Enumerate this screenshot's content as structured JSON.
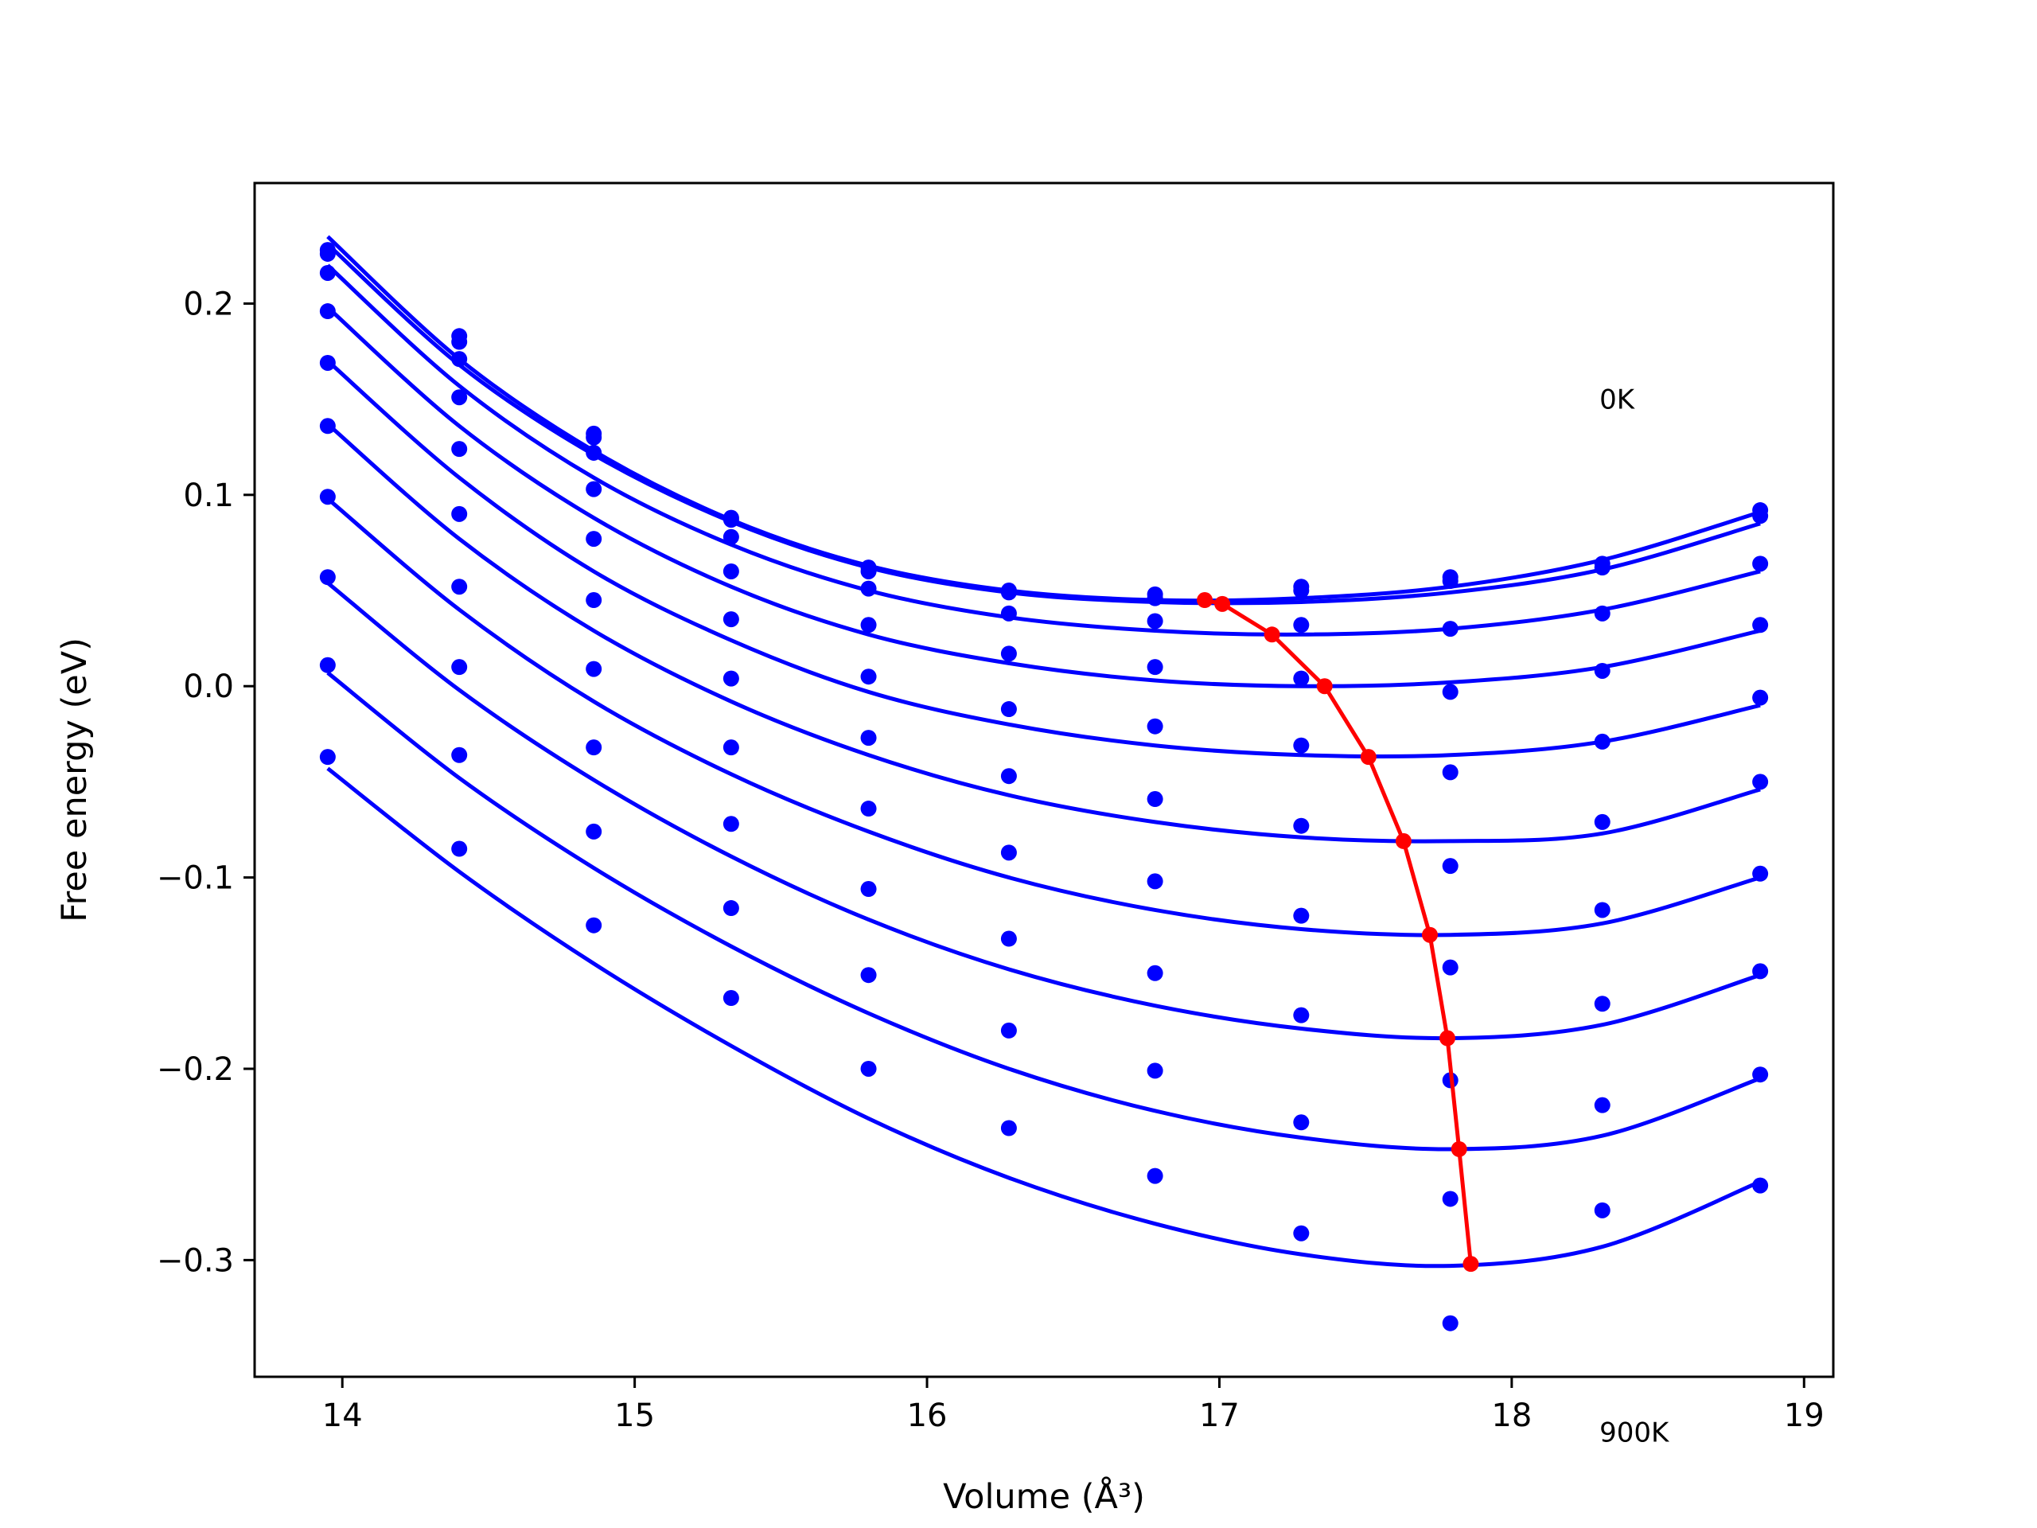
{
  "chart_data": {
    "type": "line",
    "xlabel": "Volume (Å³)",
    "ylabel": "Free energy (eV)",
    "xlim": [
      13.7,
      19.1
    ],
    "ylim": [
      -0.361,
      0.263
    ],
    "xticks": [
      14,
      15,
      16,
      17,
      18,
      19
    ],
    "xtick_labels": [
      "14",
      "15",
      "16",
      "17",
      "18",
      "19"
    ],
    "yticks": [
      -0.3,
      -0.2,
      -0.1,
      0.0,
      0.1,
      0.2
    ],
    "ytick_labels": [
      "−0.3",
      "−0.2",
      "−0.1",
      "0.0",
      "0.1",
      "0.2"
    ],
    "annotations": [
      {
        "text": "0K",
        "x": 18.3,
        "y": 0.145
      },
      {
        "text": "900K",
        "x": 18.3,
        "y": -0.395
      }
    ],
    "colors": {
      "fit": "#0000ff",
      "points": "#0000ff",
      "minima": "#ff0000"
    },
    "volumes": [
      13.95,
      14.4,
      14.86,
      15.33,
      15.8,
      16.28,
      16.78,
      17.28,
      17.79,
      18.31,
      18.85
    ],
    "series": [
      {
        "points": [
          0.228,
          0.183,
          0.132,
          0.088,
          0.062,
          0.05,
          0.048,
          0.052,
          0.057,
          0.064,
          0.092
        ],
        "curve": [
          [
            13.95,
            0.235
          ],
          [
            14.4,
            0.171
          ],
          [
            14.86,
            0.123
          ],
          [
            15.33,
            0.087
          ],
          [
            15.8,
            0.063
          ],
          [
            16.28,
            0.05
          ],
          [
            16.78,
            0.045
          ],
          [
            17.28,
            0.046
          ],
          [
            17.79,
            0.052
          ],
          [
            18.31,
            0.066
          ],
          [
            18.85,
            0.091
          ]
        ],
        "minimum": [
          16.95,
          0.045
        ]
      },
      {
        "points": [
          0.226,
          0.18,
          0.13,
          0.087,
          0.06,
          0.049,
          0.046,
          0.05,
          0.055,
          0.062,
          0.089
        ],
        "curve": [
          [
            13.95,
            0.231
          ],
          [
            14.4,
            0.168
          ],
          [
            14.86,
            0.121
          ],
          [
            15.33,
            0.086
          ],
          [
            15.8,
            0.062
          ],
          [
            16.28,
            0.049
          ],
          [
            16.78,
            0.044
          ],
          [
            17.28,
            0.044
          ],
          [
            17.79,
            0.049
          ],
          [
            18.31,
            0.061
          ],
          [
            18.85,
            0.085
          ]
        ],
        "minimum": [
          17.01,
          0.043
        ]
      },
      {
        "points": [
          0.216,
          0.171,
          0.122,
          0.078,
          0.051,
          0.038,
          0.034,
          0.032,
          0.03,
          0.038,
          0.064
        ],
        "curve": [
          [
            13.95,
            0.22
          ],
          [
            14.4,
            0.157
          ],
          [
            14.86,
            0.109
          ],
          [
            15.33,
            0.074
          ],
          [
            15.8,
            0.05
          ],
          [
            16.28,
            0.036
          ],
          [
            16.78,
            0.029
          ],
          [
            17.28,
            0.027
          ],
          [
            17.79,
            0.03
          ],
          [
            18.31,
            0.04
          ],
          [
            18.85,
            0.06
          ]
        ],
        "minimum": [
          17.18,
          0.027
        ]
      },
      {
        "points": [
          0.196,
          0.151,
          0.103,
          0.06,
          0.032,
          0.017,
          0.01,
          0.004,
          -0.003,
          0.008,
          0.032
        ],
        "curve": [
          [
            13.95,
            0.198
          ],
          [
            14.4,
            0.136
          ],
          [
            14.86,
            0.088
          ],
          [
            15.33,
            0.052
          ],
          [
            15.8,
            0.027
          ],
          [
            16.28,
            0.012
          ],
          [
            16.78,
            0.003
          ],
          [
            17.28,
            0.0
          ],
          [
            17.79,
            0.002
          ],
          [
            18.31,
            0.01
          ],
          [
            18.85,
            0.029
          ]
        ],
        "minimum": [
          17.36,
          0.0
        ]
      },
      {
        "points": [
          0.169,
          0.124,
          0.077,
          0.035,
          0.005,
          -0.012,
          -0.021,
          -0.031,
          -0.045,
          -0.029,
          -0.006
        ],
        "curve": [
          [
            13.95,
            0.17
          ],
          [
            14.4,
            0.109
          ],
          [
            14.86,
            0.06
          ],
          [
            15.33,
            0.024
          ],
          [
            15.8,
            -0.003
          ],
          [
            16.28,
            -0.02
          ],
          [
            16.78,
            -0.031
          ],
          [
            17.28,
            -0.036
          ],
          [
            17.79,
            -0.036
          ],
          [
            18.31,
            -0.029
          ],
          [
            18.85,
            -0.01
          ]
        ],
        "minimum": [
          17.51,
          -0.037
        ]
      },
      {
        "points": [
          0.136,
          0.09,
          0.045,
          0.004,
          -0.027,
          -0.047,
          -0.059,
          -0.073,
          -0.094,
          -0.071,
          -0.05
        ],
        "curve": [
          [
            13.95,
            0.137
          ],
          [
            14.4,
            0.077
          ],
          [
            14.86,
            0.029
          ],
          [
            15.33,
            -0.008
          ],
          [
            15.8,
            -0.036
          ],
          [
            16.28,
            -0.057
          ],
          [
            16.78,
            -0.071
          ],
          [
            17.28,
            -0.079
          ],
          [
            17.79,
            -0.081
          ],
          [
            18.31,
            -0.077
          ],
          [
            18.85,
            -0.054
          ]
        ],
        "minimum": [
          17.63,
          -0.081
        ]
      },
      {
        "points": [
          0.099,
          0.052,
          0.009,
          -0.032,
          -0.064,
          -0.087,
          -0.102,
          -0.12,
          -0.147,
          -0.117,
          -0.098
        ],
        "curve": [
          [
            13.95,
            0.098
          ],
          [
            14.4,
            0.04
          ],
          [
            14.86,
            -0.008
          ],
          [
            15.33,
            -0.046
          ],
          [
            15.8,
            -0.076
          ],
          [
            16.28,
            -0.1
          ],
          [
            16.78,
            -0.117
          ],
          [
            17.28,
            -0.127
          ],
          [
            17.79,
            -0.13
          ],
          [
            18.31,
            -0.124
          ],
          [
            18.85,
            -0.1
          ]
        ],
        "minimum": [
          17.72,
          -0.13
        ]
      },
      {
        "points": [
          0.057,
          0.01,
          -0.032,
          -0.072,
          -0.106,
          -0.132,
          -0.15,
          -0.172,
          -0.206,
          -0.166,
          -0.149
        ],
        "curve": [
          [
            13.95,
            0.054
          ],
          [
            14.4,
            -0.002
          ],
          [
            14.86,
            -0.049
          ],
          [
            15.33,
            -0.089
          ],
          [
            15.8,
            -0.122
          ],
          [
            16.28,
            -0.148
          ],
          [
            16.78,
            -0.167
          ],
          [
            17.28,
            -0.179
          ],
          [
            17.79,
            -0.184
          ],
          [
            18.31,
            -0.177
          ],
          [
            18.85,
            -0.151
          ]
        ],
        "minimum": [
          17.78,
          -0.184
        ]
      },
      {
        "points": [
          0.011,
          -0.036,
          -0.076,
          -0.116,
          -0.151,
          -0.18,
          -0.201,
          -0.228,
          -0.268,
          -0.219,
          -0.203
        ],
        "curve": [
          [
            13.95,
            0.007
          ],
          [
            14.4,
            -0.048
          ],
          [
            14.86,
            -0.095
          ],
          [
            15.33,
            -0.136
          ],
          [
            15.8,
            -0.171
          ],
          [
            16.28,
            -0.2
          ],
          [
            16.78,
            -0.222
          ],
          [
            17.28,
            -0.236
          ],
          [
            17.79,
            -0.242
          ],
          [
            18.31,
            -0.235
          ],
          [
            18.85,
            -0.205
          ]
        ],
        "minimum": [
          17.82,
          -0.242
        ]
      },
      {
        "points": [
          -0.037,
          -0.085,
          -0.125,
          -0.163,
          -0.2,
          -0.231,
          -0.256,
          -0.286,
          -0.333,
          -0.274,
          -0.261
        ],
        "curve": [
          [
            13.95,
            -0.043
          ],
          [
            14.4,
            -0.097
          ],
          [
            14.86,
            -0.145
          ],
          [
            15.33,
            -0.188
          ],
          [
            15.8,
            -0.226
          ],
          [
            16.28,
            -0.257
          ],
          [
            16.78,
            -0.281
          ],
          [
            17.28,
            -0.297
          ],
          [
            17.79,
            -0.303
          ],
          [
            18.31,
            -0.293
          ],
          [
            18.85,
            -0.259
          ]
        ],
        "minimum": [
          17.86,
          -0.302
        ]
      }
    ]
  }
}
